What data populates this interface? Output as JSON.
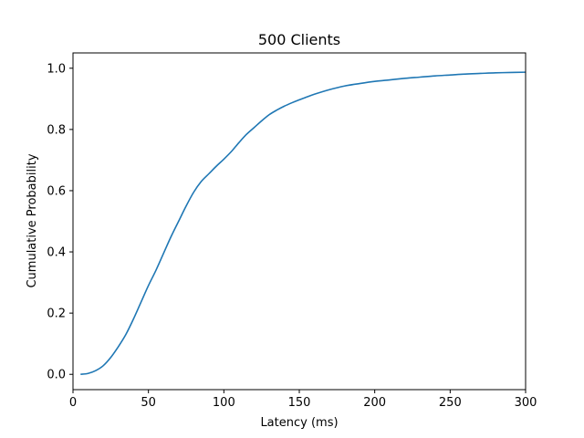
{
  "chart_data": {
    "type": "line",
    "title": "500 Clients",
    "xlabel": "Latency (ms)",
    "ylabel": "Cumulative Probability",
    "xlim": [
      0,
      300
    ],
    "ylim": [
      -0.05,
      1.05
    ],
    "xticks": [
      0,
      50,
      100,
      150,
      200,
      250,
      300
    ],
    "yticks": [
      0.0,
      0.2,
      0.4,
      0.6,
      0.8,
      1.0
    ],
    "xtick_labels": [
      "0",
      "50",
      "100",
      "150",
      "200",
      "250",
      "300"
    ],
    "ytick_labels": [
      "0.0",
      "0.2",
      "0.4",
      "0.6",
      "0.8",
      "1.0"
    ],
    "grid": false,
    "series": [
      {
        "color": "#1f77b4",
        "x": [
          5,
          10,
          15,
          20,
          25,
          30,
          35,
          40,
          45,
          50,
          55,
          60,
          65,
          70,
          75,
          80,
          85,
          90,
          95,
          100,
          105,
          110,
          115,
          120,
          125,
          130,
          135,
          140,
          145,
          150,
          155,
          160,
          170,
          180,
          190,
          200,
          210,
          220,
          230,
          240,
          250,
          260,
          270,
          280,
          290,
          300
        ],
        "y": [
          0.0,
          0.003,
          0.012,
          0.028,
          0.055,
          0.09,
          0.13,
          0.18,
          0.235,
          0.29,
          0.34,
          0.395,
          0.45,
          0.5,
          0.55,
          0.595,
          0.63,
          0.655,
          0.68,
          0.703,
          0.728,
          0.757,
          0.784,
          0.806,
          0.828,
          0.848,
          0.863,
          0.876,
          0.887,
          0.897,
          0.906,
          0.915,
          0.93,
          0.942,
          0.95,
          0.957,
          0.962,
          0.967,
          0.971,
          0.975,
          0.978,
          0.981,
          0.983,
          0.985,
          0.986,
          0.987
        ]
      }
    ]
  }
}
